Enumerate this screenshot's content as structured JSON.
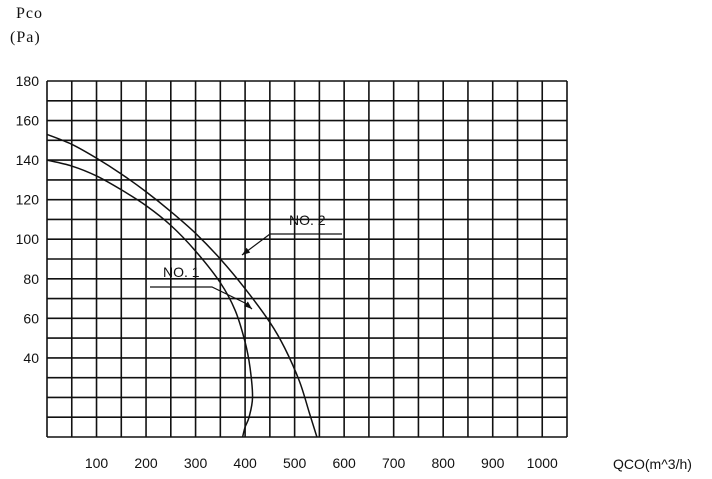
{
  "chart_data": {
    "type": "line",
    "ylabel_line1": "Pco",
    "ylabel_line2": "(Pa)",
    "xlabel": "QCO(m^3/h)",
    "xlim": [
      0,
      1050
    ],
    "ylim": [
      0,
      180
    ],
    "x_ticks": [
      100,
      200,
      300,
      400,
      500,
      600,
      700,
      800,
      900,
      1000
    ],
    "x_tick_labels": [
      "100",
      "200",
      "300",
      "400",
      "500",
      "600",
      "700",
      "800",
      "900",
      "1000"
    ],
    "y_ticks": [
      40,
      60,
      80,
      100,
      120,
      140,
      160,
      180
    ],
    "y_tick_labels": [
      "40",
      "60",
      "80",
      "100",
      "120",
      "140",
      "160",
      "180"
    ],
    "grid": true,
    "series": [
      {
        "name": "NO. 1",
        "x": [
          0,
          50,
          100,
          150,
          200,
          250,
          300,
          350,
          380,
          400,
          410,
          415,
          408,
          400,
          395
        ],
        "y": [
          140,
          137,
          132,
          125,
          117,
          107,
          94,
          78,
          64,
          48,
          35,
          20,
          10,
          5,
          0
        ]
      },
      {
        "name": "NO. 2",
        "x": [
          0,
          50,
          100,
          150,
          200,
          250,
          300,
          350,
          400,
          450,
          480,
          510,
          530,
          545
        ],
        "y": [
          153,
          148,
          141,
          133,
          124,
          114,
          103,
          90,
          75,
          58,
          45,
          28,
          12,
          0
        ]
      }
    ],
    "annotations": [
      {
        "text": "NO. 1",
        "series": 0
      },
      {
        "text": "NO. 2",
        "series": 1
      }
    ]
  }
}
